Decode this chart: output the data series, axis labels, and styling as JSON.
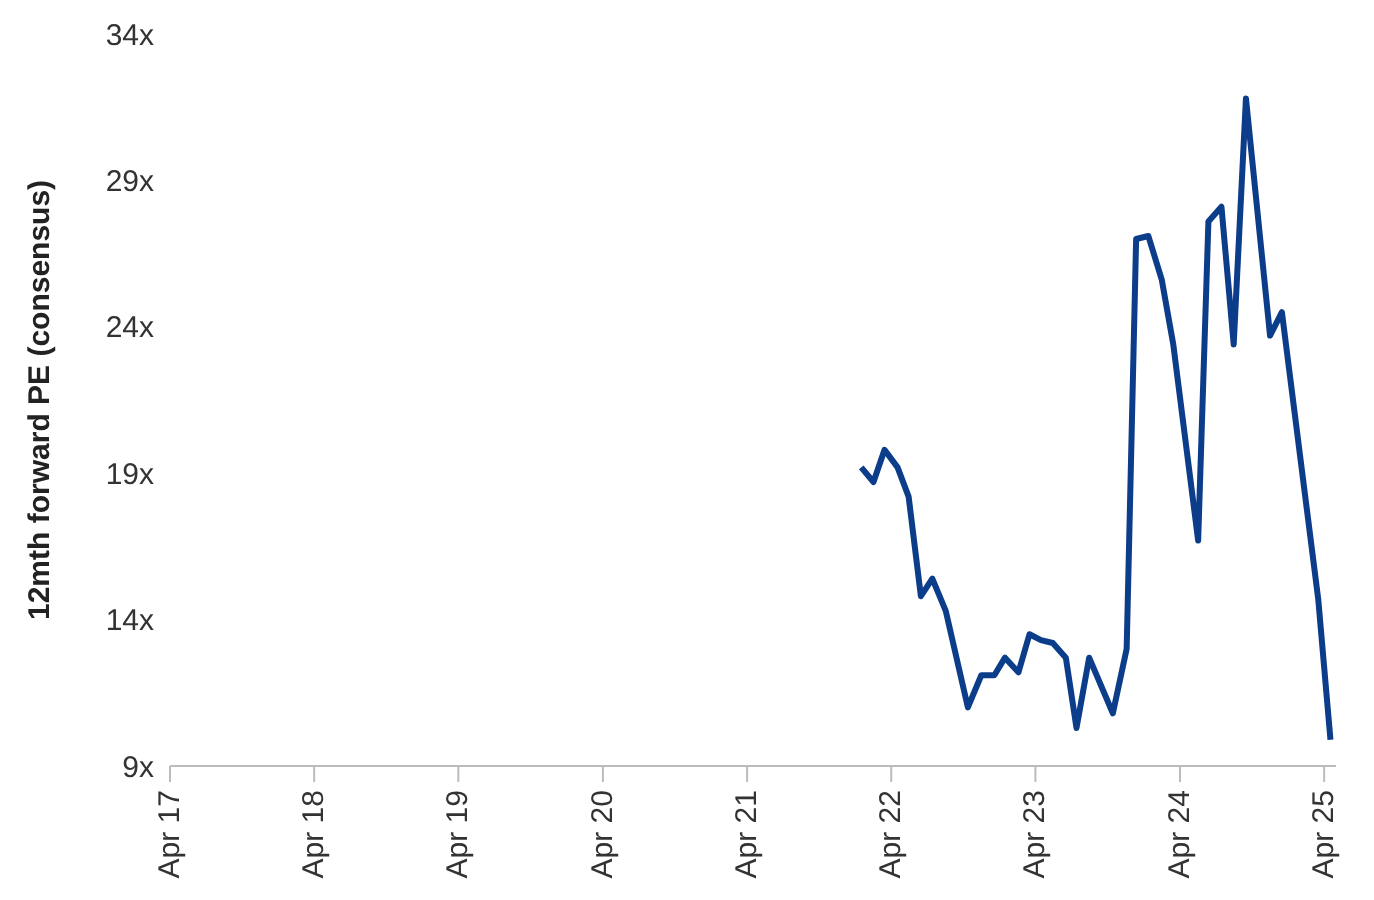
{
  "chart_data": {
    "type": "line",
    "ylabel": "12mth forward PE (consensus)",
    "x": [
      "2022-01-15",
      "2022-02-15",
      "2022-03-15",
      "2022-04-17",
      "2022-05-15",
      "2022-06-15",
      "2022-07-14",
      "2022-08-17",
      "2022-10-12",
      "2022-11-15",
      "2022-12-18",
      "2023-01-14",
      "2023-02-17",
      "2023-03-17",
      "2023-04-15",
      "2023-05-15",
      "2023-06-17",
      "2023-07-14",
      "2023-08-15",
      "2023-10-14",
      "2023-11-18",
      "2023-12-12",
      "2024-01-12",
      "2024-02-15",
      "2024-03-15",
      "2024-05-17",
      "2024-06-12",
      "2024-07-15",
      "2024-08-15",
      "2024-09-15",
      "2024-11-15",
      "2024-12-15",
      "2025-03-17",
      "2025-04-17"
    ],
    "series": [
      {
        "color": "#0b3d8a",
        "values": [
          19.2,
          18.7,
          19.8,
          19.2,
          18.2,
          14.8,
          15.4,
          14.3,
          11.0,
          12.1,
          12.1,
          12.7,
          12.2,
          13.5,
          13.3,
          13.2,
          12.7,
          10.3,
          12.7,
          10.8,
          13.0,
          27.0,
          27.1,
          25.6,
          23.4,
          16.7,
          27.6,
          28.1,
          23.4,
          31.8,
          23.7,
          24.5,
          14.7,
          9.9
        ]
      }
    ],
    "xlim": [
      "2017-04-01",
      "2025-05-01"
    ],
    "xticks": [
      {
        "value": "2017-04-01",
        "label": "Apr 17"
      },
      {
        "value": "2018-04-01",
        "label": "Apr 18"
      },
      {
        "value": "2019-04-01",
        "label": "Apr 19"
      },
      {
        "value": "2020-04-01",
        "label": "Apr 20"
      },
      {
        "value": "2021-04-01",
        "label": "Apr 21"
      },
      {
        "value": "2022-04-01",
        "label": "Apr 22"
      },
      {
        "value": "2023-04-01",
        "label": "Apr 23"
      },
      {
        "value": "2024-04-01",
        "label": "Apr 24"
      },
      {
        "value": "2025-04-01",
        "label": "Apr 25"
      }
    ],
    "ylim": [
      9,
      34
    ],
    "yticks": [
      {
        "value": 9,
        "label": "9x"
      },
      {
        "value": 14,
        "label": "14x"
      },
      {
        "value": 19,
        "label": "19x"
      },
      {
        "value": 24,
        "label": "24x"
      },
      {
        "value": 29,
        "label": "29x"
      },
      {
        "value": 34,
        "label": "34x"
      }
    ],
    "grid": false,
    "legend": false,
    "marker": "none",
    "line_style": "solid"
  }
}
